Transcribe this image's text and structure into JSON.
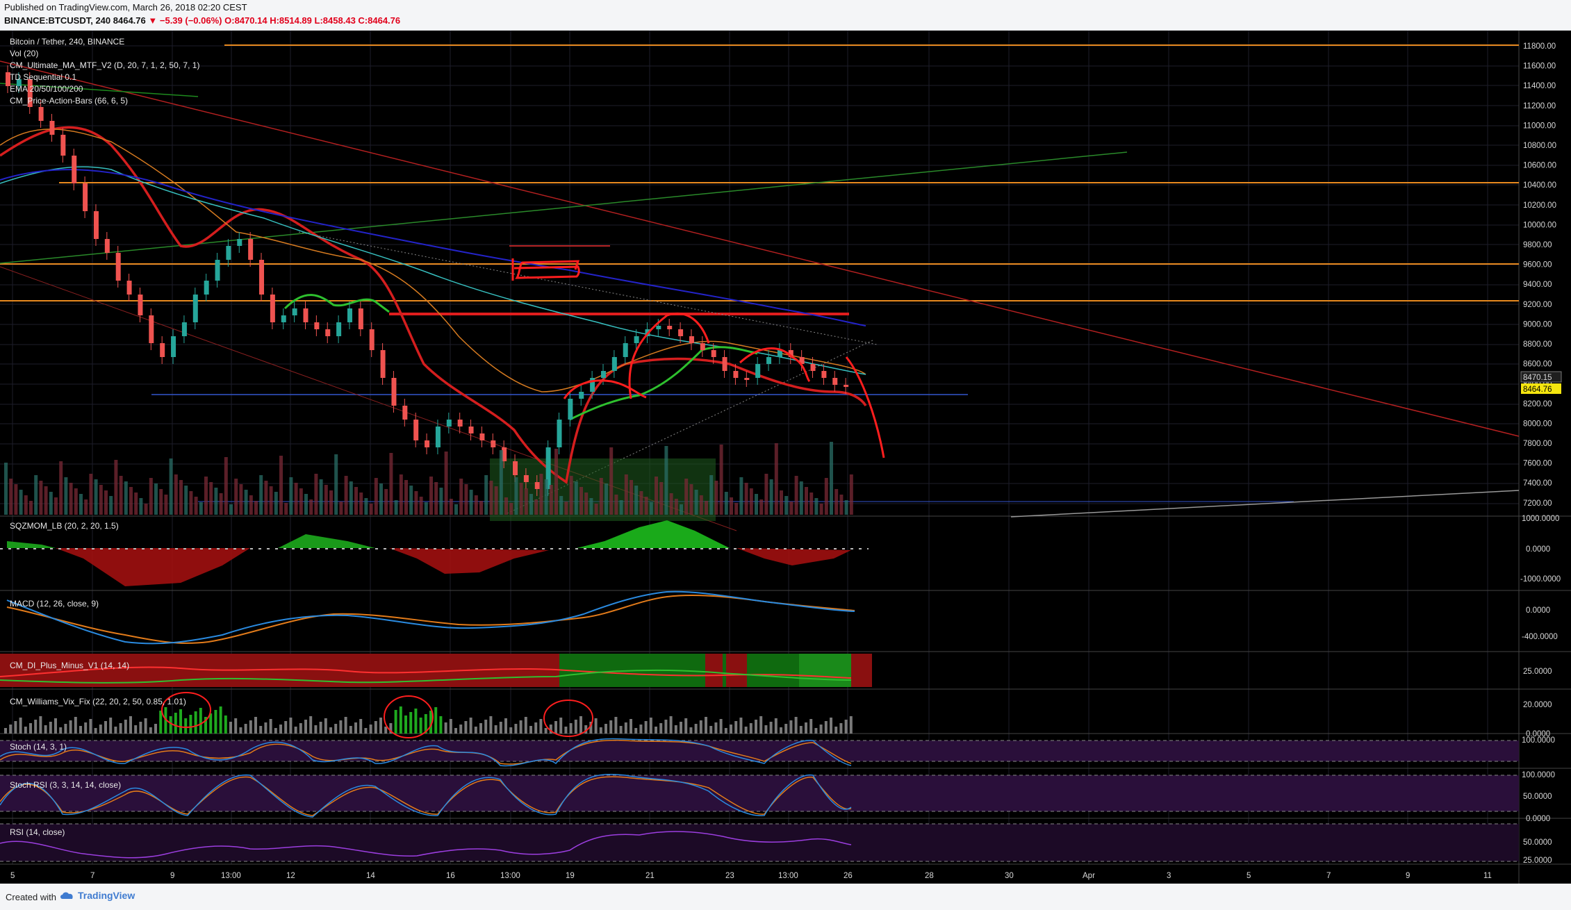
{
  "header": {
    "published": "Published on TradingView.com, March 26, 2018 02:20 CEST",
    "symbol": "BINANCE:BTCUSDT, 240",
    "last": "8464.76",
    "change": "▼ −5.39 (−0.06%)",
    "open": "O:8470.14",
    "high": "H:8514.89",
    "low": "L:8458.43",
    "close": "C:8464.76"
  },
  "legend": {
    "title": "Bitcoin / Tether, 240, BINANCE",
    "vol": "Vol (20)",
    "ma": "CM_Ultimate_MA_MTF_V2 (D, 20, 7, 1, 2, 50, 7, 1)",
    "td": "TD Sequential 0.1",
    "ema": "EMA 20/50/100/200",
    "pab": "CM_Price-Action-Bars (66, 6, 5)"
  },
  "price_axis": {
    "ticks": [
      "11800.00",
      "11600.00",
      "11400.00",
      "11200.00",
      "11000.00",
      "10800.00",
      "10600.00",
      "10400.00",
      "10200.00",
      "10000.00",
      "9800.00",
      "9600.00",
      "9400.00",
      "9200.00",
      "9000.00",
      "8800.00",
      "8600.00",
      "8400.00",
      "8200.00",
      "8000.00",
      "7800.00",
      "7600.00",
      "7400.00",
      "7200.00"
    ],
    "tag_prev": "8470.15",
    "tag_last": "8464.76",
    "tag_prev_color": "#1f1f1f",
    "tag_last_color": "#f5e50f"
  },
  "indicators": {
    "sqzmom": {
      "label": "SQZMOM_LB (20, 2, 20, 1.5)",
      "ticks": [
        "1000.0000",
        "0.0000",
        "-1000.0000"
      ]
    },
    "macd": {
      "label": "MACD (12, 26, close, 9)",
      "ticks": [
        "0.0000",
        "-400.0000"
      ]
    },
    "dmi": {
      "label": "CM_DI_Plus_Minus_V1 (14, 14)",
      "ticks": [
        "25.0000"
      ]
    },
    "wvf": {
      "label": "CM_Williams_Vix_Fix (22, 20, 2, 50, 0.85, 1.01)",
      "ticks": [
        "20.0000",
        "0.0000"
      ]
    },
    "stoch": {
      "label": "Stoch (14, 3, 1)",
      "ticks": [
        "100.0000"
      ]
    },
    "stochrsi": {
      "label": "Stoch RSI (3, 3, 14, 14, close)",
      "ticks": [
        "100.0000",
        "50.0000",
        "0.0000"
      ]
    },
    "rsi": {
      "label": "RSI (14, close)",
      "ticks": [
        "50.0000",
        "25.0000"
      ]
    }
  },
  "time_axis": [
    "5",
    "7",
    "9",
    "13:00",
    "12",
    "14",
    "16",
    "13:00",
    "19",
    "21",
    "23",
    "13:00",
    "26",
    "28",
    "30",
    "Apr",
    "3",
    "5",
    "7",
    "9",
    "11"
  ],
  "footer": {
    "created": "Created with",
    "brand": "TradingView"
  },
  "colors": {
    "bg": "#000000",
    "grid": "#1e1e2a",
    "up": "#26a69a",
    "down": "#ef5350",
    "orange_level": "#e7891f",
    "ema_red": "#d41e1e",
    "ema_cyan": "#37c0c0",
    "ema_blue": "#2323c8",
    "ema_orange": "#d57a20",
    "ma_green": "#2ec02e"
  }
}
